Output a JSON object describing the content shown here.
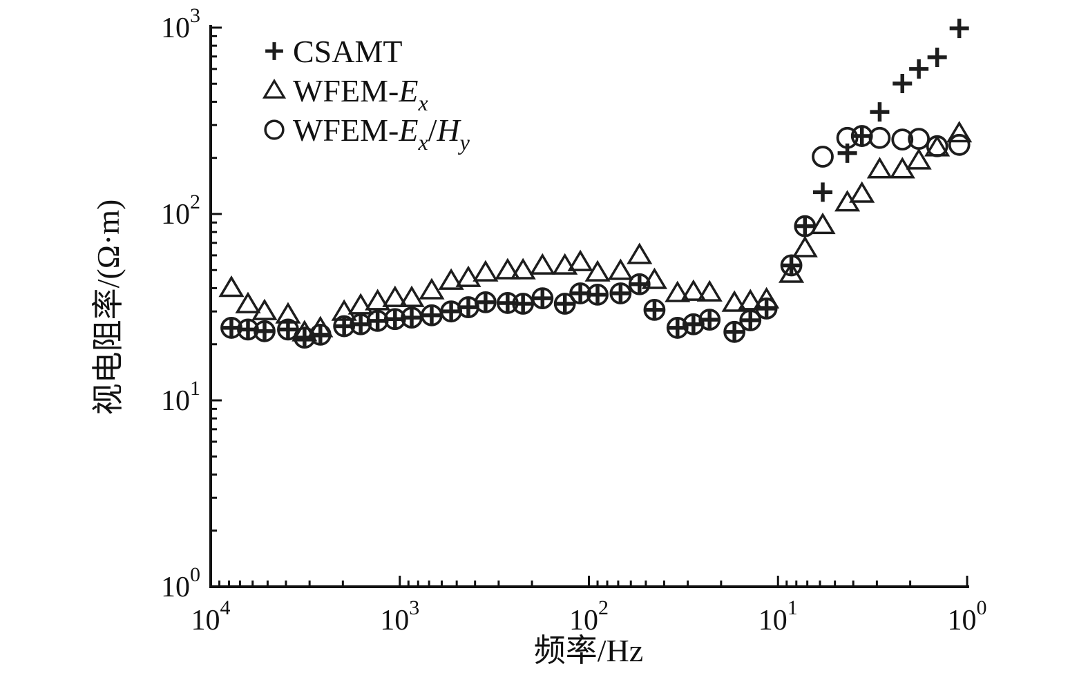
{
  "colors": {
    "background": "#ffffff",
    "marker": "#1d1d1d",
    "axis": "#111111",
    "text": "#111111"
  },
  "chart_data": {
    "type": "scatter",
    "title": "",
    "xlabel": "频率/Hz",
    "ylabel": "视电阻率/(Ω·m)",
    "x_axis": {
      "scale": "log",
      "min": 1,
      "max": 10000,
      "reversed": true,
      "tick_exponents": [
        4,
        3,
        2,
        1,
        0
      ],
      "tick_labels": [
        "10⁴",
        "10³",
        "10²",
        "10¹",
        "10⁰"
      ],
      "minor_ticks": "log-decades"
    },
    "y_axis": {
      "scale": "log",
      "min": 1,
      "max": 1000,
      "tick_exponents": [
        0,
        1,
        2,
        3
      ],
      "tick_labels": [
        "10⁰",
        "10¹",
        "10²",
        "10³"
      ],
      "minor_ticks": "log-decades"
    },
    "frequencies_hz": [
      7770,
      6350,
      5190,
      3900,
      3190,
      2630,
      1970,
      1610,
      1310,
      1060,
      865,
      678,
      535,
      434,
      352,
      269,
      223,
      176,
      134,
      111,
      90,
      68,
      54,
      45,
      34,
      28,
      23,
      17,
      14,
      11.5,
      8.5,
      7.2,
      5.8,
      4.3,
      3.6,
      2.9,
      2.2,
      1.8,
      1.44,
      1.1
    ],
    "series": [
      {
        "name": "WFEM-Ex/Hy",
        "marker": "circle-open",
        "values": [
          24.5,
          24,
          23.5,
          24,
          21.7,
          22.5,
          25,
          25.6,
          26.7,
          27.3,
          27.8,
          28.6,
          30,
          31.6,
          33.6,
          33.3,
          33,
          35.3,
          33,
          37.5,
          36.9,
          37.5,
          42,
          30.6,
          24.5,
          25.6,
          27.1,
          23.3,
          26.9,
          31.1,
          53,
          86,
          203,
          256,
          262,
          256,
          251,
          253,
          231,
          235
        ]
      },
      {
        "name": "WFEM-Ex",
        "marker": "triangle-open",
        "values": [
          40,
          32.7,
          30,
          28.8,
          23.1,
          24.3,
          29.8,
          32.2,
          33.9,
          35.3,
          35.3,
          38.8,
          43.7,
          45.2,
          48.4,
          49.7,
          49.7,
          52.7,
          52.7,
          55,
          48.4,
          49.3,
          60,
          44.1,
          37.5,
          38.1,
          37.8,
          33.3,
          33.9,
          34.7,
          47.6,
          65.3,
          87,
          115,
          128,
          173,
          173,
          193,
          227,
          270
        ]
      },
      {
        "name": "CSAMT",
        "marker": "plus",
        "values": [
          24.5,
          24,
          23.5,
          24,
          21.7,
          22.5,
          25,
          25.6,
          26.7,
          27.3,
          27.8,
          28.6,
          30,
          31.6,
          33.6,
          33.3,
          33,
          35.3,
          33,
          37.5,
          36.9,
          37.5,
          42,
          30.6,
          24.5,
          25.6,
          27.1,
          23.3,
          26.9,
          31.1,
          53,
          86,
          131,
          212,
          262,
          353,
          501,
          600,
          693,
          990
        ]
      }
    ],
    "legend": {
      "position": "top-left-inside",
      "items": [
        {
          "label": "CSAMT",
          "marker": "plus",
          "segments": [
            {
              "text": "CSAMT"
            }
          ]
        },
        {
          "label": "WFEM-Ex",
          "marker": "triangle-open",
          "segments": [
            {
              "text": "WFEM-"
            },
            {
              "text": "E",
              "italic": true
            },
            {
              "text": "x",
              "italic": true,
              "sub": true
            }
          ]
        },
        {
          "label": "WFEM-Ex/Hy",
          "marker": "circle-open",
          "segments": [
            {
              "text": "WFEM-"
            },
            {
              "text": "E",
              "italic": true
            },
            {
              "text": "x",
              "italic": true,
              "sub": true
            },
            {
              "text": "/"
            },
            {
              "text": "H",
              "italic": true
            },
            {
              "text": "y",
              "italic": true,
              "sub": true
            }
          ]
        }
      ]
    }
  }
}
